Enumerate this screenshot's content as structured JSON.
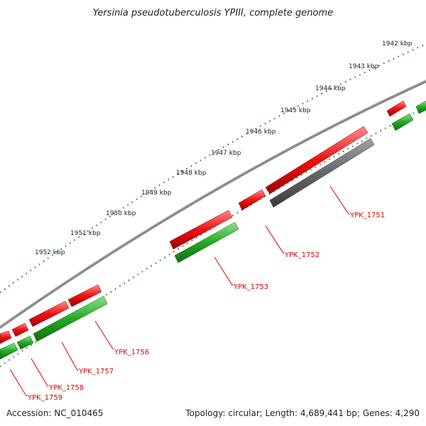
{
  "title": "Yersinia pseudotuberculosis YPIII, complete genome",
  "footer": {
    "accession": "Accession: NC_010465",
    "summary": "Topology: circular; Length: 4,689,441 bp; Genes: 4,290"
  },
  "colors": {
    "forward_gene": "#ee1111",
    "reverse_gene": "#22aa22",
    "pseudo_gene": "#666666",
    "backbone": "#8a8a8a",
    "tick": "#1a7a1a",
    "label": "#dd0000"
  },
  "kbp_ticks": [
    "1942 kbp",
    "1943 kbp",
    "1944 kbp",
    "1945 kbp",
    "1946 kbp",
    "1947 kbp",
    "1948 kbp",
    "1949 kbp",
    "1950 kbp",
    "1951 kbp",
    "1952 kbp"
  ],
  "gene_labels": [
    "YPK_1751",
    "YPK_1752",
    "YPK_1753",
    "YPK_1756",
    "YPK_1757",
    "YPK_1758",
    "YPK_1759"
  ]
}
